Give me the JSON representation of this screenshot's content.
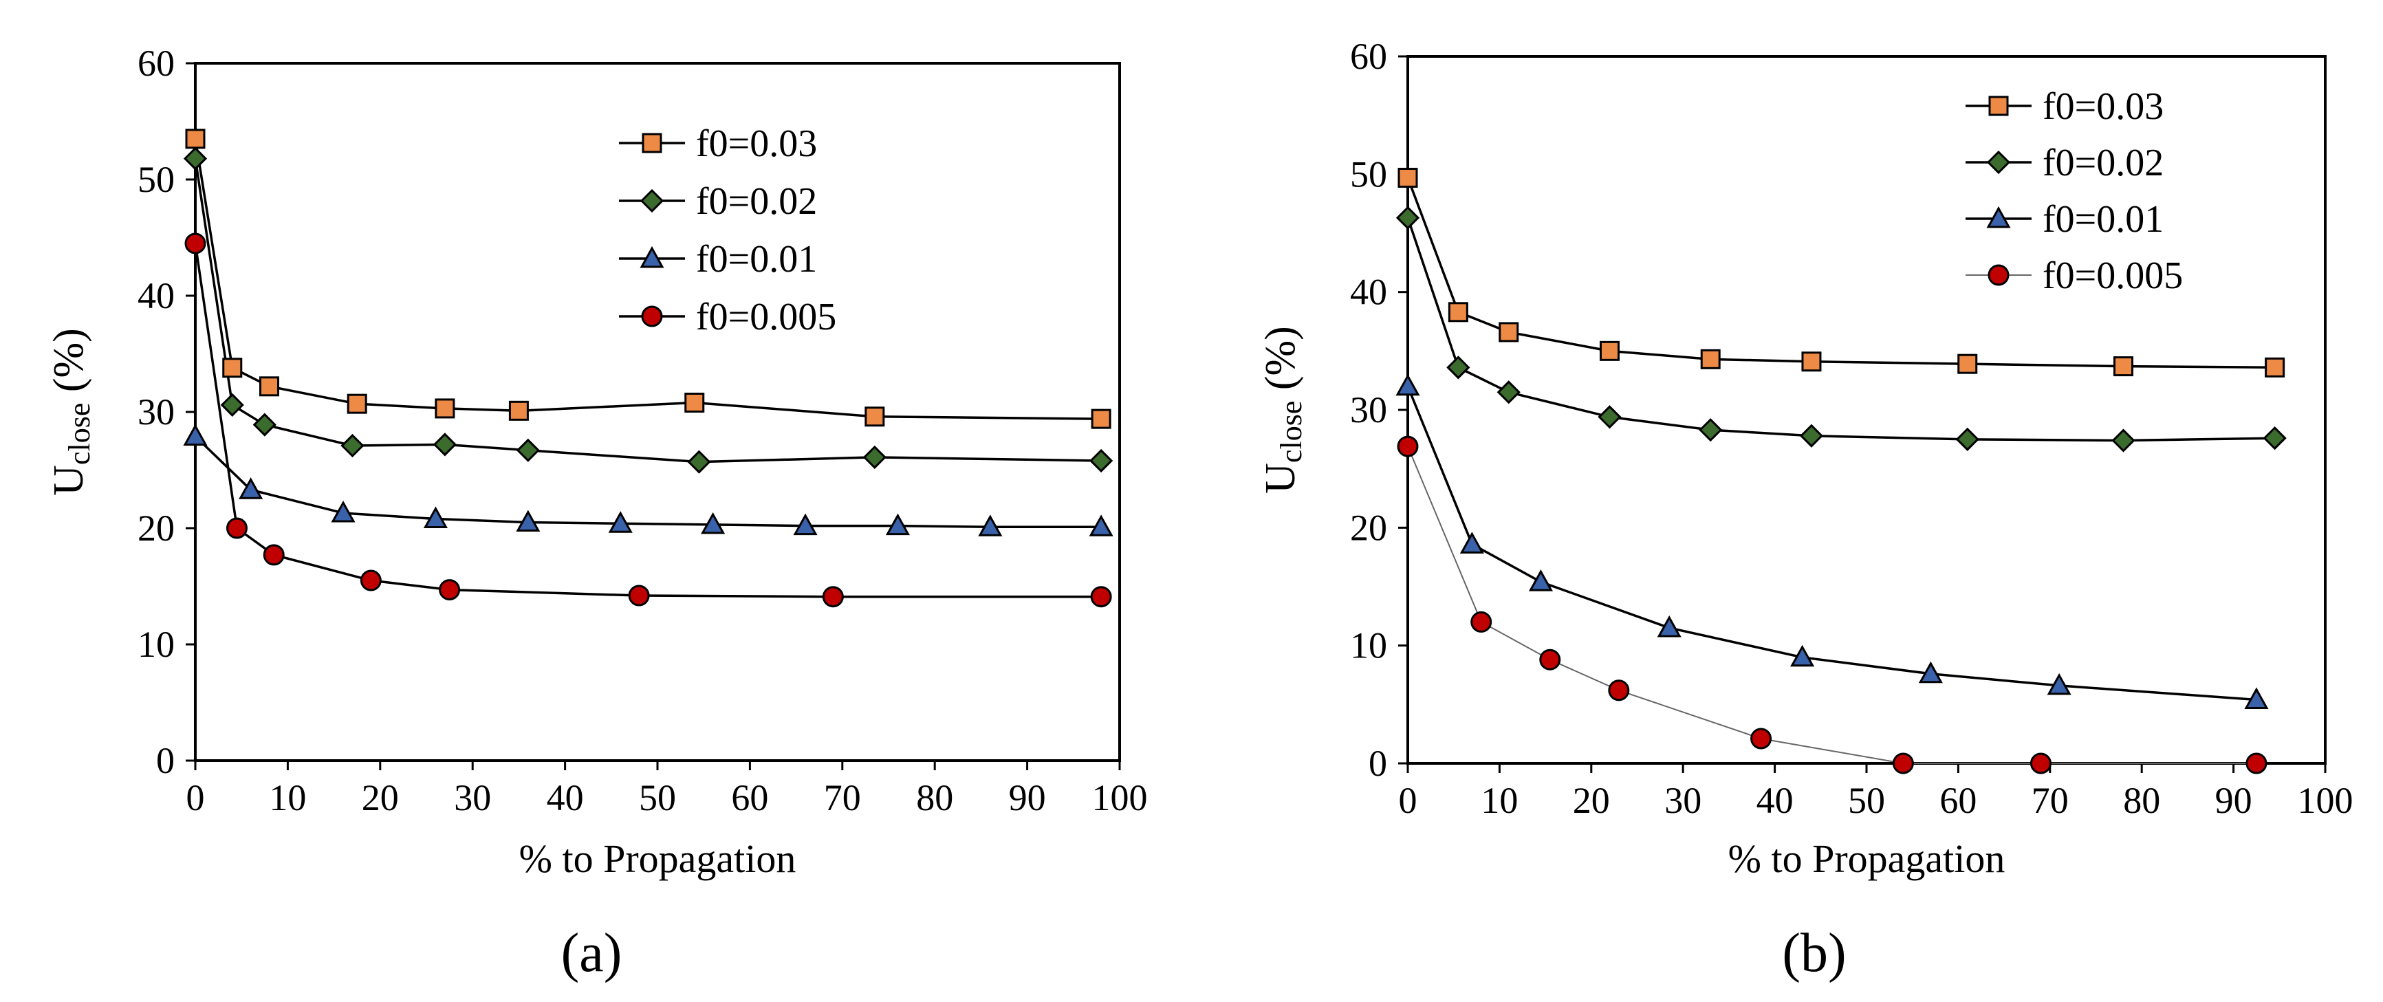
{
  "chart_data": [
    {
      "type": "line",
      "panel_label": "(a)",
      "xlabel": "% to Propagation",
      "ylabel_main": "U",
      "ylabel_sub": "close",
      "ylabel_unit": " (%)",
      "xlim": [
        0,
        100
      ],
      "ylim": [
        0,
        60
      ],
      "xticks": [
        "0",
        "10",
        "20",
        "30",
        "40",
        "50",
        "60",
        "70",
        "80",
        "90",
        "100"
      ],
      "yticks": [
        "0",
        "10",
        "20",
        "30",
        "40",
        "50",
        "60"
      ],
      "grid": false,
      "legend_position": "top-right",
      "series": [
        {
          "name": "f0=0.03",
          "marker": "square",
          "color": "#ED8A45",
          "x": [
            0,
            4,
            8,
            17.5,
            27,
            35,
            54,
            73.5,
            98
          ],
          "y": [
            53.5,
            33.8,
            32.2,
            30.7,
            30.3,
            30.1,
            30.8,
            29.6,
            29.4
          ]
        },
        {
          "name": "f0=0.02",
          "marker": "diamond",
          "color": "#3C6B2E",
          "x": [
            0,
            4,
            7.5,
            17,
            27,
            36,
            54.5,
            73.5,
            98
          ],
          "y": [
            51.8,
            30.6,
            28.9,
            27.1,
            27.2,
            26.7,
            25.7,
            26.1,
            25.8
          ]
        },
        {
          "name": "f0=0.01",
          "marker": "triangle",
          "color": "#3A62AB",
          "x": [
            0,
            6,
            16,
            26,
            36,
            46,
            56,
            66,
            76,
            86,
            98
          ],
          "y": [
            27.9,
            23.3,
            21.3,
            20.8,
            20.5,
            20.4,
            20.3,
            20.2,
            20.2,
            20.1,
            20.1
          ]
        },
        {
          "name": "f0=0.005",
          "marker": "circle",
          "color": "#C00000",
          "x": [
            0,
            4.5,
            8.5,
            19,
            27.5,
            48,
            69,
            98
          ],
          "y": [
            44.5,
            20.0,
            17.7,
            15.5,
            14.7,
            14.2,
            14.1,
            14.1
          ]
        }
      ]
    },
    {
      "type": "line",
      "panel_label": "(b)",
      "xlabel": "% to Propagation",
      "ylabel_main": "U",
      "ylabel_sub": "close",
      "ylabel_unit": " (%)",
      "xlim": [
        0,
        100
      ],
      "ylim": [
        0,
        60
      ],
      "xticks": [
        "0",
        "10",
        "20",
        "30",
        "40",
        "50",
        "60",
        "70",
        "80",
        "90",
        "100"
      ],
      "yticks": [
        "0",
        "10",
        "20",
        "30",
        "40",
        "50",
        "60"
      ],
      "grid": false,
      "legend_position": "top-right",
      "series": [
        {
          "name": "f0=0.03",
          "marker": "square",
          "color": "#ED8A45",
          "x": [
            0,
            5.5,
            11,
            22,
            33,
            44,
            61,
            78,
            94.5
          ],
          "y": [
            49.7,
            38.3,
            36.6,
            35.0,
            34.3,
            34.1,
            33.9,
            33.7,
            33.6
          ]
        },
        {
          "name": "f0=0.02",
          "marker": "diamond",
          "color": "#3C6B2E",
          "x": [
            0,
            5.5,
            11,
            22,
            33,
            44,
            61,
            78,
            94.5
          ],
          "y": [
            46.3,
            33.6,
            31.5,
            29.4,
            28.3,
            27.8,
            27.5,
            27.4,
            27.6
          ]
        },
        {
          "name": "f0=0.01",
          "marker": "triangle",
          "color": "#3A62AB",
          "x": [
            0,
            7,
            14.5,
            28.5,
            43,
            57,
            71,
            92.5
          ],
          "y": [
            32.0,
            18.6,
            15.4,
            11.5,
            9.0,
            7.6,
            6.6,
            5.4
          ]
        },
        {
          "name": "f0=0.005",
          "marker": "circle",
          "color": "#C00000",
          "x": [
            0,
            8,
            15.5,
            23,
            38.5,
            54,
            69,
            92.5
          ],
          "y": [
            26.9,
            12.0,
            8.8,
            6.2,
            2.1,
            0.0,
            0.0,
            0.0
          ]
        }
      ]
    }
  ]
}
